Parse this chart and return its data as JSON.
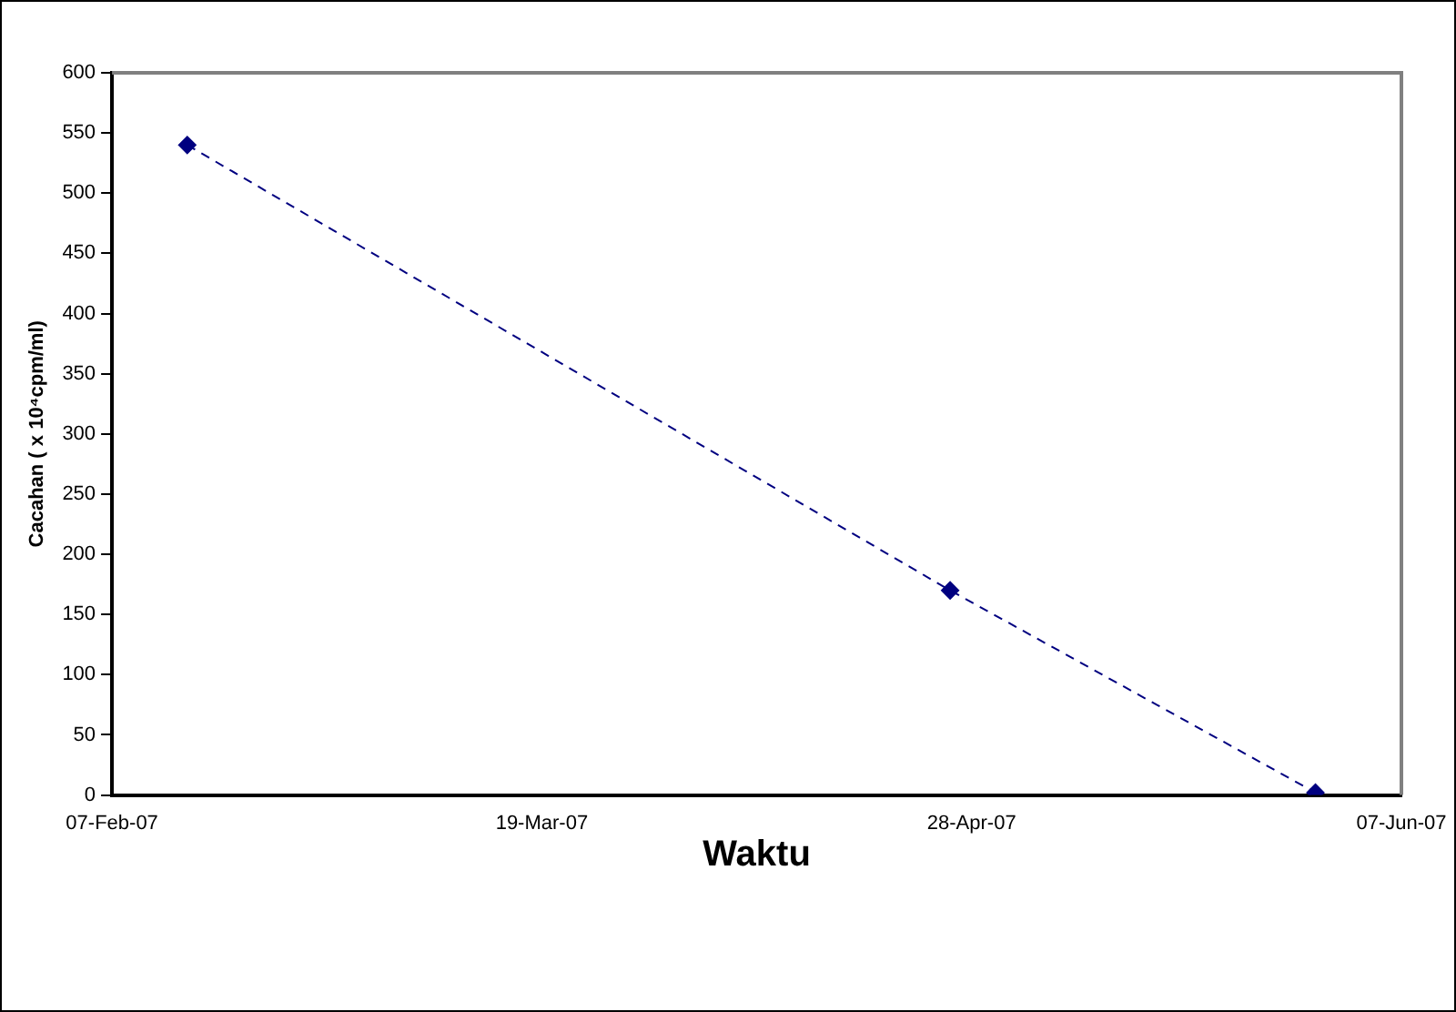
{
  "chart_data": {
    "type": "line",
    "xlabel": "Waktu",
    "ylabel": "Cacahan ( x 10⁴cpm/ml)",
    "x": [
      "2007-02-14",
      "2007-04-26",
      "2007-05-30"
    ],
    "series": [
      {
        "color": "#000080",
        "values": [
          540,
          170,
          2
        ]
      }
    ],
    "xlim": [
      "2007-02-07",
      "2007-06-07"
    ],
    "xticks": [
      {
        "value": "2007-02-07",
        "label": "07-Feb-07"
      },
      {
        "value": "2007-03-19",
        "label": "19-Mar-07"
      },
      {
        "value": "2007-04-28",
        "label": "28-Apr-07"
      },
      {
        "value": "2007-06-07",
        "label": "07-Jun-07"
      }
    ],
    "ylim": [
      0,
      600
    ],
    "yticks": [
      0,
      50,
      100,
      150,
      200,
      250,
      300,
      350,
      400,
      450,
      500,
      550,
      600
    ],
    "grid": false,
    "legend": false,
    "marker": "diamond",
    "line_style": "dashed"
  }
}
